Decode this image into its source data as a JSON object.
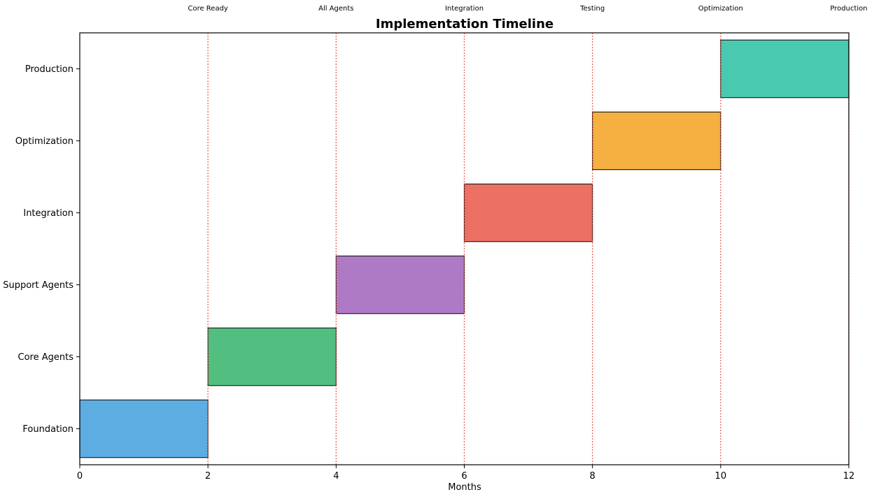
{
  "chart_data": {
    "type": "bar",
    "orientation": "horizontal",
    "chart_style": "gantt",
    "title": "Implementation Timeline",
    "xlabel": "Months",
    "ylabel": "",
    "xlim": [
      0,
      12
    ],
    "x_ticks": [
      "0",
      "2",
      "4",
      "6",
      "8",
      "10",
      "12"
    ],
    "grid": false,
    "legend": "none",
    "phases": [
      {
        "name": "Foundation",
        "start": 0,
        "end": 2,
        "color": "#5dade2"
      },
      {
        "name": "Core Agents",
        "start": 2,
        "end": 4,
        "color": "#52be80"
      },
      {
        "name": "Support Agents",
        "start": 4,
        "end": 6,
        "color": "#af7ac5"
      },
      {
        "name": "Integration",
        "start": 6,
        "end": 8,
        "color": "#ec7063"
      },
      {
        "name": "Optimization",
        "start": 8,
        "end": 10,
        "color": "#f5b041"
      },
      {
        "name": "Production",
        "start": 10,
        "end": 12,
        "color": "#48c9b0"
      }
    ],
    "milestones": [
      {
        "label": "Core Ready",
        "x": 2
      },
      {
        "label": "All Agents",
        "x": 4
      },
      {
        "label": "Integration",
        "x": 6
      },
      {
        "label": "Testing",
        "x": 8
      },
      {
        "label": "Optimization",
        "x": 10
      },
      {
        "label": "Production",
        "x": 12
      }
    ],
    "milestone_line_color": "#e74c3c"
  }
}
